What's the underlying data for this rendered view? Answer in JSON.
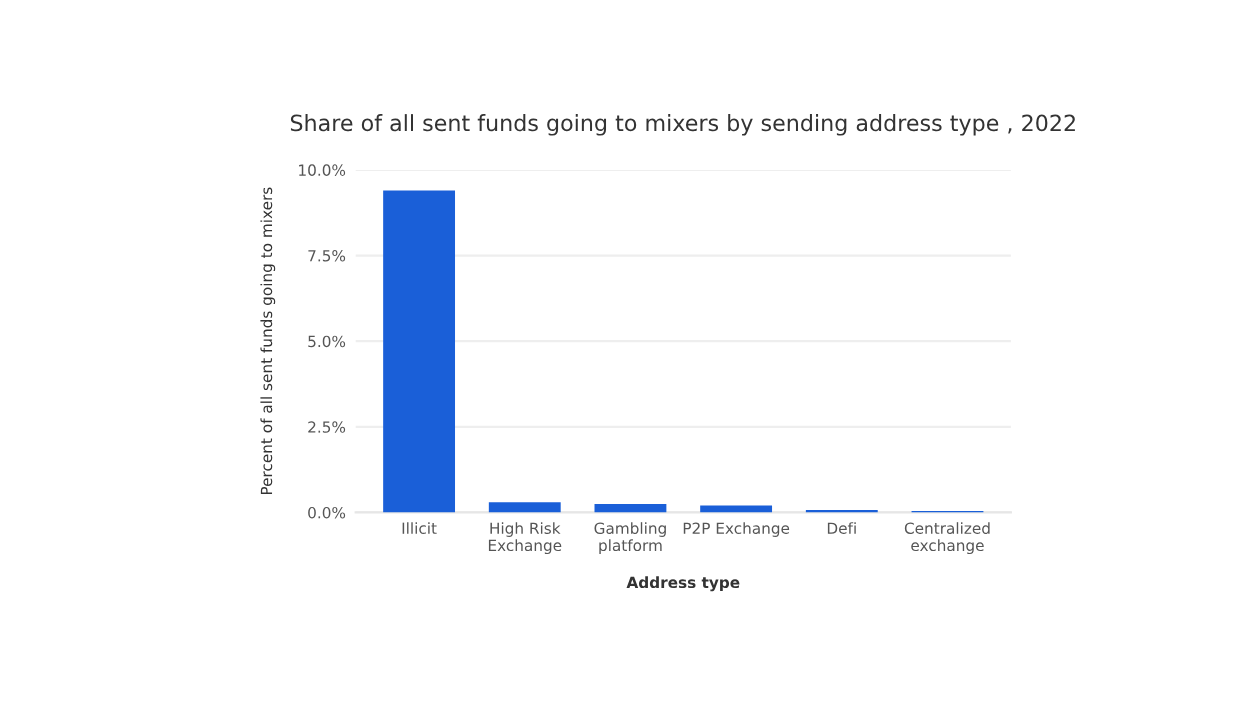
{
  "chart_data": {
    "type": "bar",
    "title": "Share of all sent funds going to mixers by sending address type , 2022",
    "xlabel": "Address type",
    "ylabel": "Percent of all sent funds going to mixers",
    "categories": [
      "Illicit",
      "High Risk\nExchange",
      "Gambling\nplatform",
      "P2P Exchange",
      "Defi",
      "Centralized\nexchange"
    ],
    "values": [
      9.4,
      0.3,
      0.25,
      0.2,
      0.07,
      0.04
    ],
    "color": "#1a5fd8",
    "ylim": [
      0,
      10
    ],
    "yticks": [
      {
        "value": 0,
        "label": "0.0%"
      },
      {
        "value": 2.5,
        "label": "2.5%"
      },
      {
        "value": 5,
        "label": "5.0%"
      },
      {
        "value": 7.5,
        "label": "7.5%"
      },
      {
        "value": 10,
        "label": "10.0%"
      }
    ],
    "grid": "y",
    "legend": false
  }
}
